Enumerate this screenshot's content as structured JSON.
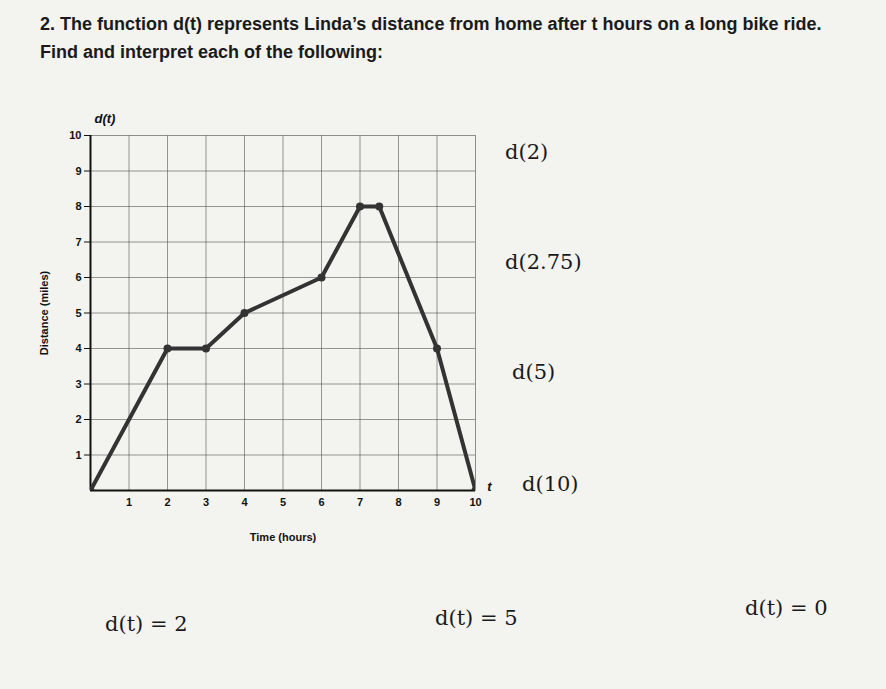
{
  "problem": {
    "number": "2.",
    "text": "The function d(t) represents Linda’s distance from home after t hours on a long bike ride. Find and interpret each of the following:",
    "items": [
      "d(2)",
      "d(2.75)",
      "d(5)",
      "d(10)"
    ],
    "equations": [
      "d(t) = 2",
      "d(t) = 5",
      "d(t) = 0"
    ]
  },
  "chart_data": {
    "type": "line",
    "x_label": "Time (hours)",
    "y_label": "Distance (miles)",
    "annotations": [
      "d(t)",
      "t"
    ],
    "x": [
      0,
      2,
      3,
      4,
      6,
      7,
      7.5,
      9,
      10
    ],
    "values": [
      0,
      4,
      4,
      5,
      6,
      8,
      8,
      4,
      0
    ],
    "color": "#333333",
    "marker": "circle",
    "grid": true,
    "xlim": [
      0,
      10
    ],
    "xticks": [
      1,
      2,
      3,
      4,
      5,
      6,
      7,
      8,
      9,
      10
    ],
    "ylim": [
      0,
      10
    ],
    "yticks": [
      1,
      2,
      3,
      4,
      5,
      6,
      7,
      8,
      9,
      10
    ]
  }
}
